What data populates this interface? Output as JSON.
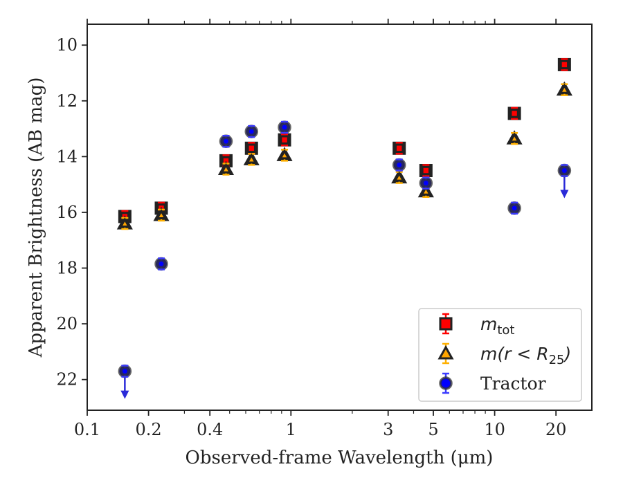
{
  "chart_data": {
    "type": "scatter",
    "xlabel": "Observed-frame Wavelength (μm)",
    "ylabel": "Apparent Brightness (AB mag)",
    "xscale": "log",
    "xlim": [
      0.1,
      30
    ],
    "ylim": [
      23.1,
      9.25
    ],
    "y_inverted": true,
    "x_ticks": [
      0.1,
      0.2,
      0.4,
      1,
      3,
      5,
      10,
      20
    ],
    "x_tick_labels": [
      "0.1",
      "0.2",
      "0.4",
      "1",
      "3",
      "5",
      "10",
      "20"
    ],
    "y_ticks": [
      10,
      12,
      14,
      16,
      18,
      20,
      22
    ],
    "y_tick_labels": [
      "10",
      "12",
      "14",
      "16",
      "18",
      "20",
      "22"
    ],
    "grid": false,
    "legend_position": "lower-right",
    "legend": [
      {
        "label": "m",
        "sub": "tot",
        "marker": "square",
        "color": "#ff0000"
      },
      {
        "label": "m(r < R",
        "sub": "25",
        "suffix": ")",
        "marker": "triangle",
        "color": "#ffa500"
      },
      {
        "label": "Tractor",
        "marker": "circle",
        "color": "#0000ff"
      }
    ],
    "series": [
      {
        "name": "m_tot",
        "marker": "square",
        "color": "#ff0000",
        "points": [
          {
            "x": 0.153,
            "y": 16.15
          },
          {
            "x": 0.231,
            "y": 15.85
          },
          {
            "x": 0.48,
            "y": 14.15
          },
          {
            "x": 0.64,
            "y": 13.7
          },
          {
            "x": 0.93,
            "y": 13.4
          },
          {
            "x": 3.4,
            "y": 13.7
          },
          {
            "x": 4.6,
            "y": 14.5
          },
          {
            "x": 12.5,
            "y": 12.45
          },
          {
            "x": 22.0,
            "y": 10.7
          }
        ]
      },
      {
        "name": "m(r<R25)",
        "marker": "triangle",
        "color": "#ffa500",
        "points": [
          {
            "x": 0.153,
            "y": 16.4
          },
          {
            "x": 0.231,
            "y": 16.1
          },
          {
            "x": 0.48,
            "y": 14.45
          },
          {
            "x": 0.64,
            "y": 14.1
          },
          {
            "x": 0.93,
            "y": 13.95
          },
          {
            "x": 3.4,
            "y": 14.75
          },
          {
            "x": 4.6,
            "y": 15.25
          },
          {
            "x": 12.5,
            "y": 13.35
          },
          {
            "x": 22.0,
            "y": 11.6
          }
        ]
      },
      {
        "name": "Tractor",
        "marker": "circle",
        "color": "#0000ff",
        "points": [
          {
            "x": 0.153,
            "y": 21.7,
            "upper_limit": true
          },
          {
            "x": 0.231,
            "y": 17.85
          },
          {
            "x": 0.48,
            "y": 13.45
          },
          {
            "x": 0.64,
            "y": 13.1
          },
          {
            "x": 0.93,
            "y": 12.95
          },
          {
            "x": 3.4,
            "y": 14.3
          },
          {
            "x": 4.6,
            "y": 14.95
          },
          {
            "x": 12.5,
            "y": 15.85
          },
          {
            "x": 22.0,
            "y": 14.5,
            "upper_limit": true
          }
        ]
      }
    ]
  }
}
